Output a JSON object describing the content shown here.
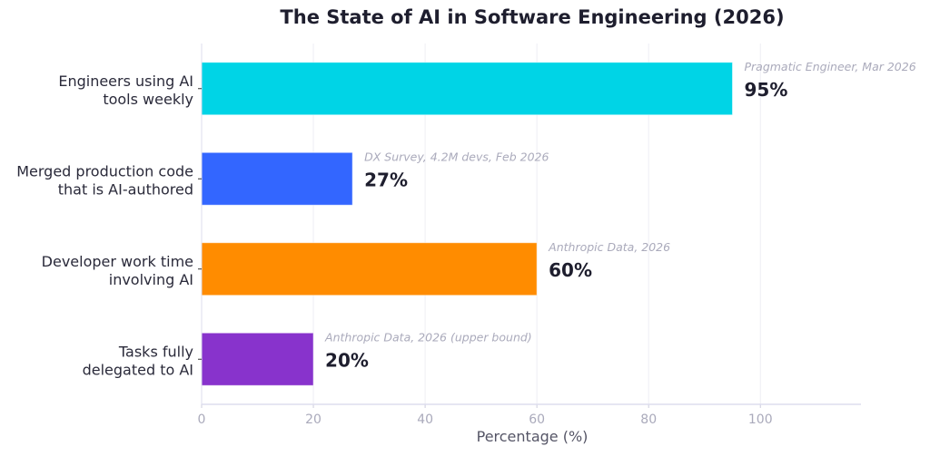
{
  "chart_data": {
    "type": "bar",
    "orientation": "horizontal",
    "title": "The State of AI in Software Engineering (2026)",
    "xlabel": "Percentage (%)",
    "ylabel": "",
    "xlim": [
      0,
      118
    ],
    "xticks": [
      0,
      20,
      40,
      60,
      80,
      100
    ],
    "grid": true,
    "categories": [
      [
        "Engineers using AI",
        "tools weekly"
      ],
      [
        "Merged production code",
        "that is AI-authored"
      ],
      [
        "Developer work time",
        "involving AI"
      ],
      [
        "Tasks fully",
        "delegated to AI"
      ]
    ],
    "values": [
      95,
      27,
      60,
      20
    ],
    "value_labels": [
      "95%",
      "27%",
      "60%",
      "20%"
    ],
    "sources": [
      "Pragmatic Engineer, Mar 2026",
      "DX Survey, 4.2M devs, Feb 2026",
      "Anthropic Data, 2026",
      "Anthropic Data, 2026 (upper bound)"
    ],
    "colors": [
      "#00D4E6",
      "#3366FF",
      "#FF8C00",
      "#8833CC"
    ]
  }
}
